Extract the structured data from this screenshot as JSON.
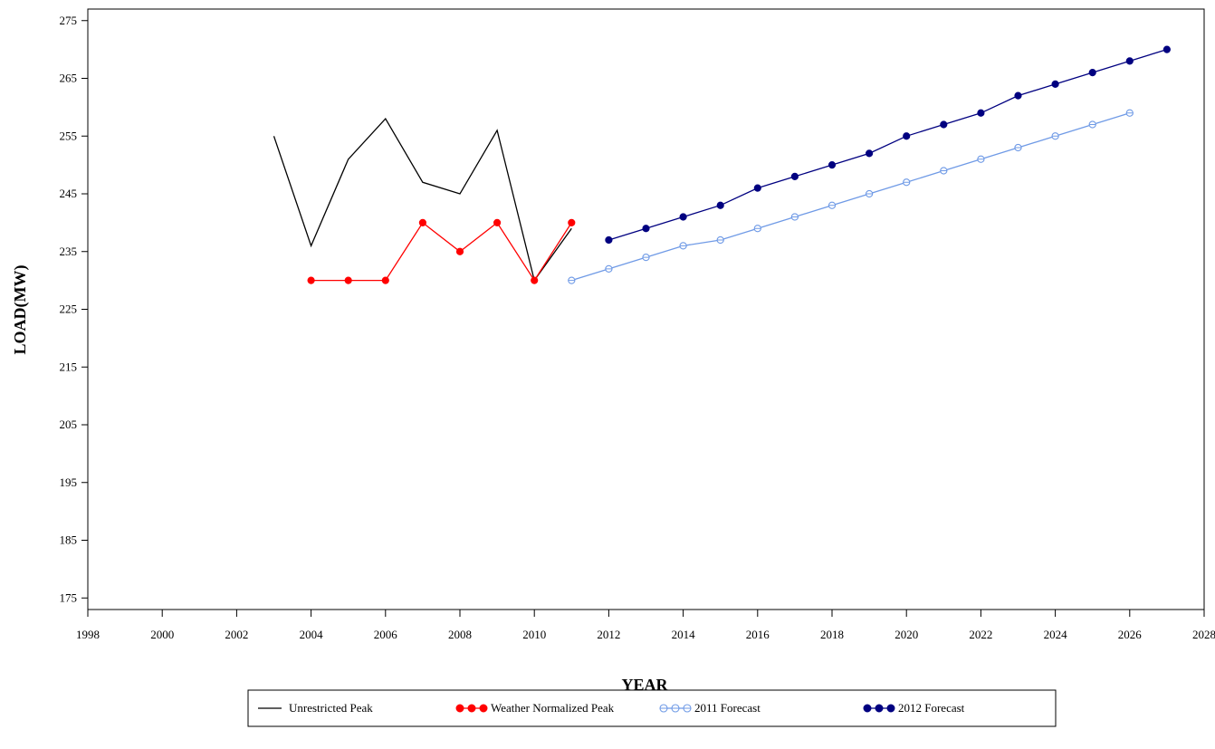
{
  "chart_data": {
    "type": "line",
    "title": "",
    "xlabel": "YEAR",
    "ylabel": "LOAD(MW)",
    "xlim": [
      1998,
      2028
    ],
    "ylim": [
      173,
      277
    ],
    "x_ticks": [
      1998,
      2000,
      2002,
      2004,
      2006,
      2008,
      2010,
      2012,
      2014,
      2016,
      2018,
      2020,
      2022,
      2024,
      2026,
      2028
    ],
    "x_tick_labels": [
      "1998",
      "2000",
      "2002",
      "2004",
      "2006",
      "2008",
      "2010",
      "2012",
      "2014",
      "2016",
      "2018",
      "2020",
      "2022",
      "2024",
      "2026",
      "2028"
    ],
    "y_ticks": [
      175,
      185,
      195,
      205,
      215,
      225,
      235,
      245,
      255,
      265,
      275
    ],
    "y_tick_labels": [
      "175",
      "185",
      "195",
      "205",
      "215",
      "225",
      "235",
      "245",
      "255",
      "265",
      "275"
    ],
    "grid": false,
    "legend_position": "bottom",
    "series": [
      {
        "name": "Unrestricted Peak",
        "color": "#000000",
        "marker": "none",
        "x": [
          2003,
          2004,
          2005,
          2006,
          2007,
          2008,
          2009,
          2010,
          2011
        ],
        "values": [
          255,
          236,
          251,
          258,
          247,
          245,
          256,
          230,
          239
        ]
      },
      {
        "name": "Weather Normalized Peak",
        "color": "#ff0000",
        "marker": "filled-circle",
        "x": [
          2004,
          2005,
          2006,
          2007,
          2008,
          2009,
          2010,
          2011
        ],
        "values": [
          230,
          230,
          230,
          240,
          235,
          240,
          230,
          240
        ]
      },
      {
        "name": "2011 Forecast",
        "color": "#6f9ae6",
        "marker": "open-circle",
        "x": [
          2011,
          2012,
          2013,
          2014,
          2015,
          2016,
          2017,
          2018,
          2019,
          2020,
          2021,
          2022,
          2023,
          2024,
          2025,
          2026
        ],
        "values": [
          230,
          232,
          234,
          236,
          237,
          239,
          241,
          243,
          245,
          247,
          249,
          251,
          253,
          255,
          257,
          259
        ]
      },
      {
        "name": "2012 Forecast",
        "color": "#000080",
        "marker": "filled-circle",
        "x": [
          2012,
          2013,
          2014,
          2015,
          2016,
          2017,
          2018,
          2019,
          2020,
          2021,
          2022,
          2023,
          2024,
          2025,
          2026,
          2027
        ],
        "values": [
          237,
          239,
          241,
          243,
          246,
          248,
          250,
          252,
          255,
          257,
          259,
          262,
          264,
          266,
          268,
          270
        ]
      }
    ]
  }
}
